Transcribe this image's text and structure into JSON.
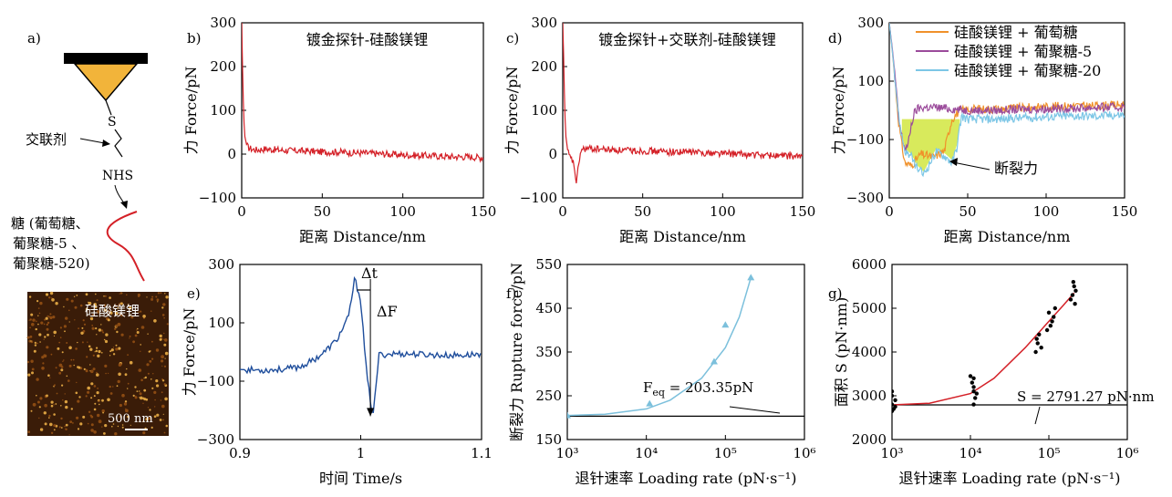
{
  "panel_a": {
    "label": "a)",
    "crosslinker_label": "交联剂",
    "s_label": "S",
    "nhs_label": "NHS",
    "sugar_label_lines": [
      "糖 (葡萄糖、",
      "葡聚糖-5 、",
      "葡聚糖-520)"
    ],
    "afm_label": "硅酸镁锂",
    "scalebar_label": "500 nm"
  },
  "colors": {
    "force_curve": "#d42027",
    "glucose": "#f0912a",
    "dextran5": "#9b4b9b",
    "dextran20": "#7cc6e6",
    "fill": "#d4e84a",
    "time_curve": "#1f4e9c",
    "fit_c": "#7cc0dc",
    "fit_g": "#d42027",
    "tip": "#f2b43a"
  },
  "chart_data": [
    {
      "panel": "b)",
      "type": "line",
      "title": "镀金探针-硅酸镁锂",
      "xlabel": "距离 Distance/nm",
      "ylabel": "力 Force/pN",
      "xlim": [
        0,
        150
      ],
      "ylim": [
        -100,
        300
      ],
      "xticks": [
        0,
        50,
        100,
        150
      ],
      "yticks": [
        -100,
        0,
        100,
        200,
        300
      ],
      "x": [
        0,
        0.5,
        1,
        1.5,
        2,
        3,
        4,
        6,
        8,
        10,
        15,
        20,
        30,
        40,
        50,
        60,
        70,
        80,
        90,
        100,
        110,
        120,
        130,
        140,
        150
      ],
      "y": [
        300,
        200,
        120,
        70,
        40,
        22,
        15,
        12,
        10,
        10,
        12,
        10,
        8,
        7,
        5,
        5,
        3,
        2,
        0,
        -2,
        -3,
        -4,
        -6,
        -6,
        -8
      ]
    },
    {
      "panel": "c)",
      "type": "line",
      "title": "镀金探针+交联剂-硅酸镁锂",
      "xlabel": "距离 Distance/nm",
      "ylabel": "力 Force/pN",
      "xlim": [
        0,
        150
      ],
      "ylim": [
        -100,
        300
      ],
      "xticks": [
        0,
        50,
        100,
        150
      ],
      "yticks": [
        -100,
        0,
        100,
        200,
        300
      ],
      "x": [
        0,
        0.5,
        1,
        1.5,
        2,
        3,
        4,
        5,
        6,
        7,
        8,
        8.5,
        9,
        10,
        11,
        12,
        14,
        20,
        30,
        40,
        50,
        60,
        70,
        80,
        90,
        100,
        110,
        120,
        130,
        140,
        150
      ],
      "y": [
        300,
        230,
        140,
        80,
        40,
        10,
        -5,
        -10,
        -15,
        -25,
        -50,
        -70,
        -55,
        -20,
        0,
        10,
        12,
        12,
        10,
        8,
        8,
        6,
        5,
        5,
        3,
        2,
        0,
        -2,
        -3,
        -4,
        -6
      ]
    },
    {
      "panel": "d)",
      "type": "line",
      "xlabel": "距离 Distance/nm",
      "ylabel": "力 Force/pN",
      "xlim": [
        0,
        150
      ],
      "ylim": [
        -300,
        300
      ],
      "xticks": [
        0,
        50,
        100,
        150
      ],
      "yticks": [
        -300,
        -100,
        100,
        300
      ],
      "legend_position": "top-right",
      "annotation": "断裂力",
      "series": [
        {
          "name": "硅酸镁锂 + 葡萄糖",
          "x": [
            0,
            2,
            4,
            6,
            8,
            10,
            14,
            20,
            28,
            35,
            40,
            45,
            55,
            70,
            90,
            110,
            130,
            150
          ],
          "y": [
            300,
            200,
            80,
            -40,
            -120,
            -180,
            -190,
            -150,
            -160,
            -140,
            -30,
            0,
            5,
            5,
            10,
            15,
            15,
            20
          ]
        },
        {
          "name": "硅酸镁锂 + 葡聚糖-5",
          "x": [
            0,
            2,
            4,
            6,
            8,
            10,
            12,
            14,
            16,
            18,
            22,
            30,
            40,
            50,
            70,
            90,
            110,
            130,
            150
          ],
          "y": [
            300,
            210,
            100,
            -30,
            -90,
            -130,
            -120,
            -50,
            -10,
            5,
            10,
            10,
            5,
            0,
            0,
            5,
            5,
            10,
            10
          ]
        },
        {
          "name": "硅酸镁锂 + 葡聚糖-20",
          "x": [
            0,
            2,
            4,
            6,
            8,
            10,
            14,
            18,
            22,
            26,
            30,
            36,
            40,
            43,
            46,
            50,
            70,
            90,
            110,
            130,
            150
          ],
          "y": [
            300,
            200,
            90,
            -20,
            -90,
            -140,
            -160,
            -200,
            -220,
            -180,
            -140,
            -160,
            -180,
            -130,
            -20,
            -30,
            -30,
            -25,
            -20,
            -20,
            -15
          ]
        }
      ]
    },
    {
      "panel": "e)",
      "type": "line",
      "xlabel": "时间 Time/s",
      "ylabel": "力 Force/pN",
      "xlim": [
        0.9,
        1.1
      ],
      "ylim": [
        -300,
        300
      ],
      "xticks": [
        0.9,
        1.0,
        1.1
      ],
      "yticks": [
        -300,
        -100,
        100,
        300
      ],
      "annotations": [
        "Δt",
        "ΔF"
      ],
      "x": [
        0.9,
        0.92,
        0.94,
        0.95,
        0.96,
        0.97,
        0.98,
        0.99,
        0.995,
        1.0,
        1.005,
        1.01,
        1.012,
        1.015,
        1.03,
        1.05,
        1.07,
        1.09,
        1.1
      ],
      "y": [
        -60,
        -62,
        -58,
        -50,
        -30,
        0,
        40,
        120,
        250,
        180,
        -80,
        -220,
        -150,
        -10,
        -5,
        -8,
        -12,
        -10,
        -5
      ]
    },
    {
      "panel": "f)",
      "type": "scatter",
      "xlabel": "退针速率 Loading rate (pN·s⁻¹)",
      "ylabel": "断裂力 Rupture force/pN",
      "x_scale": "log",
      "xlim": [
        1000,
        1000000
      ],
      "ylim": [
        150,
        550
      ],
      "xtick_labels": [
        "10³",
        "10⁴",
        "10⁵",
        "10⁶"
      ],
      "yticks": [
        150,
        250,
        350,
        450,
        550
      ],
      "annotation": "F_eq = 203.35pN",
      "points_x": [
        1000,
        11000,
        72000,
        100000,
        210000
      ],
      "points_y": [
        205,
        232,
        328,
        412,
        520
      ],
      "fit_x": [
        1000,
        3000,
        10000,
        20000,
        50000,
        100000,
        150000,
        210000
      ],
      "fit_y": [
        205,
        208,
        220,
        240,
        290,
        360,
        430,
        520
      ],
      "baseline": 203.35
    },
    {
      "panel": "g)",
      "type": "scatter",
      "xlabel": "退针速率 Loading rate (pN·s⁻¹)",
      "ylabel": "面积 S (pN·nm)",
      "x_scale": "log",
      "xlim": [
        1000,
        1000000
      ],
      "ylim": [
        2000,
        6000
      ],
      "xtick_labels": [
        "10³",
        "10⁴",
        "10⁵",
        "10⁶"
      ],
      "yticks": [
        2000,
        3000,
        4000,
        5000,
        6000
      ],
      "annotation": "S = 2791.27 pN·nm",
      "points_x": [
        1000,
        1000,
        1050,
        1100,
        950,
        1000,
        1000,
        1100,
        11000,
        10500,
        11500,
        11000,
        10000,
        12000,
        11000,
        11000,
        72000,
        68000,
        75000,
        70000,
        80000,
        110000,
        100000,
        105000,
        120000,
        95000,
        115000,
        200000,
        210000,
        190000,
        220000,
        205000,
        215000
      ],
      "points_y": [
        2800,
        3000,
        2700,
        2900,
        2850,
        2650,
        3100,
        2750,
        3100,
        3300,
        2950,
        3200,
        3450,
        3050,
        2800,
        3400,
        4200,
        4000,
        4400,
        4300,
        4100,
        4700,
        4900,
        4600,
        5000,
        4500,
        4800,
        5300,
        5500,
        5200,
        5400,
        5600,
        5100
      ],
      "fit_x": [
        1000,
        3000,
        10000,
        20000,
        50000,
        100000,
        150000,
        210000
      ],
      "fit_y": [
        2791,
        2830,
        3050,
        3400,
        4100,
        4700,
        5050,
        5350
      ],
      "baseline": 2791.27
    }
  ]
}
